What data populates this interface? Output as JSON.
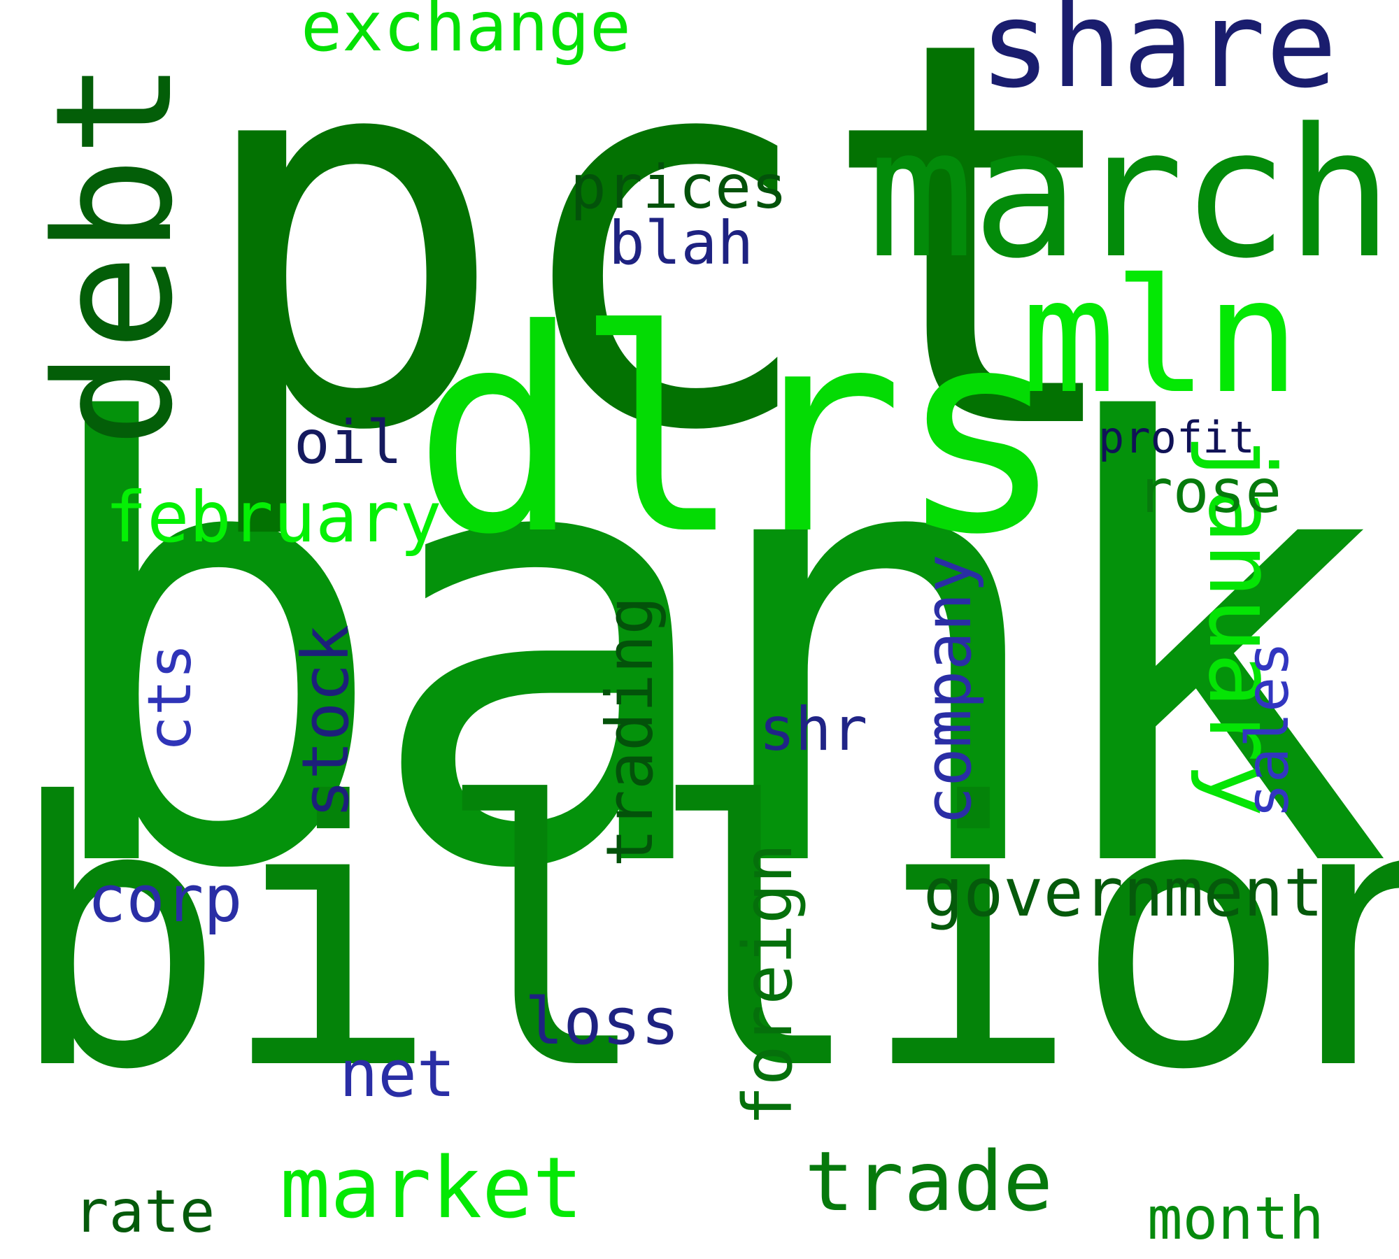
{
  "cloud": {
    "words": {
      "bank": {
        "text": "bank",
        "color": "#04920b"
      },
      "pct": {
        "text": "pct",
        "color": "#037202"
      },
      "billion": {
        "text": "billion",
        "color": "#048309"
      },
      "dlrs": {
        "text": "dlrs",
        "color": "#04db04"
      },
      "march": {
        "text": "march",
        "color": "#038b0a"
      },
      "mln": {
        "text": "mln",
        "color": "#04e804"
      },
      "share": {
        "text": "share",
        "color": "#1a1d6e"
      },
      "exchange": {
        "text": "exchange",
        "color": "#05e005"
      },
      "debt": {
        "text": "debt",
        "color": "#035e08"
      },
      "government": {
        "text": "government",
        "color": "#055a0b"
      },
      "trade": {
        "text": "trade",
        "color": "#06790c"
      },
      "market": {
        "text": "market",
        "color": "#04e804"
      },
      "february": {
        "text": "february",
        "color": "#05f005"
      },
      "january": {
        "text": "january",
        "color": "#05e405"
      },
      "foreign": {
        "text": "foreign",
        "color": "#05700b"
      },
      "company": {
        "text": "company",
        "color": "#2a2ea5"
      },
      "stock": {
        "text": "stock",
        "color": "#1c207a"
      },
      "trading": {
        "text": "trading",
        "color": "#03520a"
      },
      "prices": {
        "text": "prices",
        "color": "#03520a"
      },
      "blah": {
        "text": "blah",
        "color": "#1e2281"
      },
      "oil": {
        "text": "oil",
        "color": "#151a5e"
      },
      "profit": {
        "text": "profit",
        "color": "#101256"
      },
      "rose": {
        "text": "rose",
        "color": "#067a0c"
      },
      "cts": {
        "text": "cts",
        "color": "#2f34b8"
      },
      "shr": {
        "text": "shr",
        "color": "#202486"
      },
      "sales": {
        "text": "sales",
        "color": "#3236c0"
      },
      "corp": {
        "text": "corp",
        "color": "#2a2ea5"
      },
      "loss": {
        "text": "loss",
        "color": "#1e2281"
      },
      "net": {
        "text": "net",
        "color": "#2a2ea5"
      },
      "rate": {
        "text": "rate",
        "color": "#055a0b"
      },
      "month": {
        "text": "month",
        "color": "#068a0d"
      }
    }
  }
}
